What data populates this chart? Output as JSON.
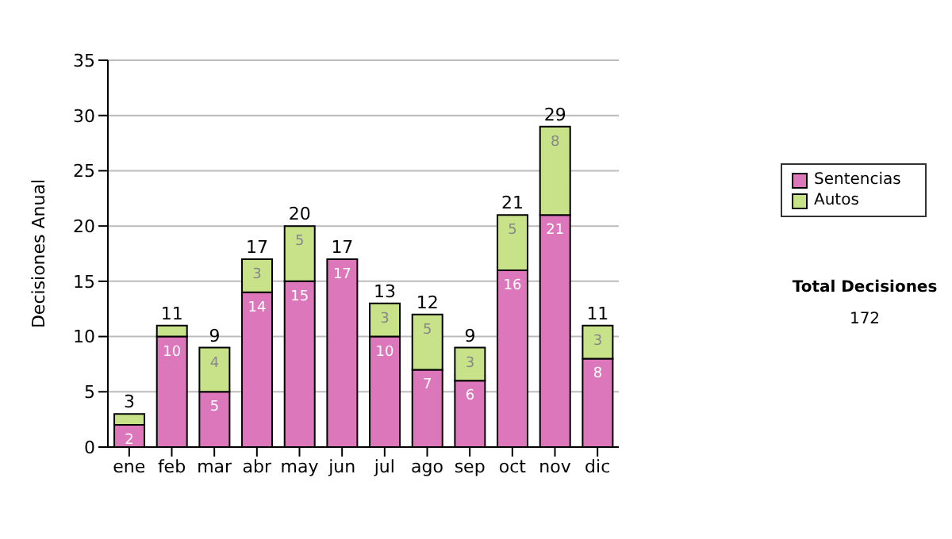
{
  "chart_data": {
    "type": "bar",
    "stacked": true,
    "ylabel": "Decisiones Anual",
    "categories": [
      "ene",
      "feb",
      "mar",
      "abr",
      "may",
      "jun",
      "jul",
      "ago",
      "sep",
      "oct",
      "nov",
      "dic"
    ],
    "series": [
      {
        "name": "Sentencias",
        "color": "#dd77bb",
        "values": [
          2,
          10,
          5,
          14,
          15,
          17,
          10,
          7,
          6,
          16,
          21,
          8
        ],
        "value_labels": [
          "2",
          "10",
          "5",
          "14",
          "15",
          "17",
          "10",
          "7",
          "6",
          "16",
          "21",
          "8"
        ]
      },
      {
        "name": "Autos",
        "color": "#c8e28a",
        "values": [
          1,
          1,
          4,
          3,
          5,
          0,
          3,
          5,
          3,
          5,
          8,
          3
        ],
        "value_labels": [
          null,
          null,
          "4",
          "3",
          "5",
          null,
          "3",
          "5",
          "3",
          "5",
          "8",
          "3"
        ]
      }
    ],
    "totals": [
      "3",
      "11",
      "9",
      "17",
      "20",
      "17",
      "13",
      "12",
      "9",
      "21",
      "29",
      "11"
    ],
    "ylim": [
      0,
      35
    ],
    "yticks": [
      0,
      5,
      10,
      15,
      20,
      25,
      30,
      35
    ],
    "grid": "y",
    "legend": "right",
    "annotations": [
      "Total Decisiones",
      "172"
    ]
  }
}
